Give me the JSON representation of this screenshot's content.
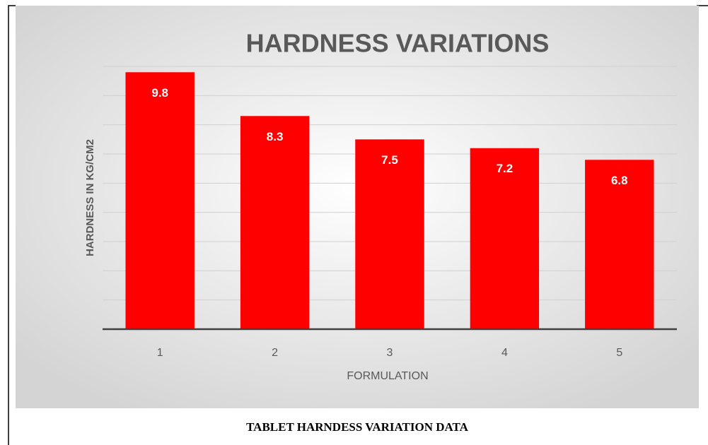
{
  "chart_data": {
    "type": "bar",
    "title": "HARDNESS VARIATIONS",
    "x_label": "FORMULATION",
    "y_label": "HARDNESS IN KG/CM2",
    "categories": [
      "1",
      "2",
      "3",
      "4",
      "5"
    ],
    "values": [
      9.8,
      8.3,
      7.5,
      7.2,
      6.8
    ],
    "color": "#ff0000",
    "ylim": [
      1,
      10
    ],
    "yticks": [
      1,
      2,
      3,
      4,
      5,
      6,
      7,
      8,
      9,
      10
    ],
    "grid": true,
    "caption": "TABLET HARNDESS VARIATION DATA"
  }
}
